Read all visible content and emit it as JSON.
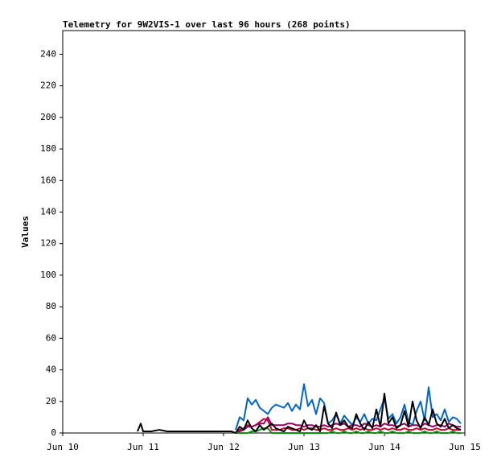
{
  "chart_data": {
    "type": "line",
    "title": "Telemetry for 9W2VIS-1 over last 96 hours (268 points)",
    "ylabel": "Values",
    "xlim": [
      10,
      15
    ],
    "xticks": [
      {
        "value": 10,
        "label": "Jun 10"
      },
      {
        "value": 11,
        "label": "Jun 11"
      },
      {
        "value": 12,
        "label": "Jun 12"
      },
      {
        "value": 13,
        "label": "Jun 13"
      },
      {
        "value": 14,
        "label": "Jun 14"
      },
      {
        "value": 15,
        "label": "Jun 15"
      }
    ],
    "ylim": [
      0,
      255
    ],
    "yticks": [
      0,
      20,
      40,
      60,
      80,
      100,
      120,
      140,
      160,
      180,
      200,
      220,
      240
    ],
    "x": [
      10.93,
      10.97,
      11.0,
      11.05,
      11.1,
      11.2,
      11.3,
      11.4,
      11.5,
      11.6,
      11.7,
      11.8,
      11.9,
      12.0,
      12.1,
      12.15,
      12.2,
      12.25,
      12.3,
      12.35,
      12.4,
      12.45,
      12.5,
      12.55,
      12.6,
      12.65,
      12.7,
      12.75,
      12.8,
      12.85,
      12.9,
      12.95,
      13.0,
      13.05,
      13.1,
      13.15,
      13.2,
      13.25,
      13.3,
      13.35,
      13.4,
      13.45,
      13.5,
      13.55,
      13.6,
      13.65,
      13.7,
      13.75,
      13.8,
      13.85,
      13.9,
      13.95,
      14.0,
      14.05,
      14.1,
      14.15,
      14.2,
      14.25,
      14.3,
      14.35,
      14.4,
      14.45,
      14.5,
      14.55,
      14.6,
      14.65,
      14.7,
      14.75,
      14.8,
      14.85,
      14.9,
      14.95
    ],
    "series": [
      {
        "color": "#0066cc",
        "values": [
          null,
          null,
          null,
          null,
          null,
          null,
          null,
          null,
          null,
          null,
          null,
          null,
          null,
          null,
          null,
          2,
          10,
          8,
          22,
          18,
          21,
          16,
          14,
          12,
          16,
          18,
          17,
          16,
          19,
          14,
          18,
          15,
          31,
          17,
          21,
          12,
          22,
          19,
          6,
          8,
          12,
          6,
          11,
          8,
          5,
          10,
          7,
          12,
          6,
          9,
          8,
          15,
          22,
          9,
          12,
          6,
          10,
          18,
          7,
          5,
          14,
          20,
          8,
          29,
          10,
          12,
          8,
          15,
          7,
          10,
          9,
          6
        ]
      },
      {
        "color": "#cc0033",
        "values": [
          null,
          null,
          null,
          null,
          null,
          null,
          null,
          null,
          null,
          null,
          null,
          null,
          null,
          null,
          null,
          0,
          2,
          3,
          5,
          4,
          5,
          7,
          9,
          8,
          2,
          2,
          2,
          3,
          3,
          2,
          2,
          3,
          2,
          3,
          3,
          2,
          2,
          3,
          2,
          2,
          3,
          2,
          2,
          3,
          2,
          3,
          2,
          3,
          2,
          2,
          3,
          2,
          3,
          2,
          3,
          2,
          2,
          3,
          2,
          2,
          3,
          2,
          3,
          2,
          2,
          3,
          2,
          2,
          3,
          2,
          2,
          2
        ]
      },
      {
        "color": "#990066",
        "values": [
          null,
          null,
          null,
          null,
          null,
          null,
          null,
          null,
          null,
          null,
          null,
          null,
          null,
          null,
          null,
          0,
          1,
          2,
          4,
          4,
          5,
          6,
          6,
          10,
          5,
          5,
          5,
          5,
          6,
          6,
          5,
          5,
          4,
          5,
          5,
          4,
          4,
          5,
          4,
          5,
          6,
          5,
          6,
          4,
          5,
          5,
          4,
          6,
          5,
          4,
          5,
          4,
          6,
          5,
          5,
          4,
          5,
          6,
          4,
          5,
          5,
          4,
          6,
          5,
          4,
          5,
          5,
          4,
          6,
          5,
          4,
          4
        ]
      },
      {
        "color": "#009900",
        "values": [
          null,
          null,
          null,
          null,
          null,
          null,
          null,
          null,
          null,
          null,
          null,
          null,
          null,
          null,
          null,
          0,
          0,
          0,
          0,
          1,
          1,
          2,
          3,
          3,
          0,
          0,
          0,
          0,
          0,
          0,
          0,
          0,
          0,
          0,
          0,
          0,
          0,
          0,
          0,
          1,
          0,
          0,
          1,
          0,
          0,
          1,
          0,
          0,
          1,
          0,
          0,
          1,
          0,
          0,
          1,
          0,
          0,
          0,
          1,
          0,
          0,
          0,
          1,
          0,
          0,
          1,
          0,
          0,
          0,
          1,
          0,
          0
        ]
      },
      {
        "color": "#000000",
        "values": [
          1,
          6,
          1,
          1,
          1,
          2,
          1,
          1,
          1,
          1,
          1,
          1,
          1,
          1,
          1,
          0,
          4,
          2,
          8,
          3,
          1,
          5,
          2,
          4,
          6,
          3,
          2,
          1,
          4,
          3,
          2,
          1,
          8,
          3,
          2,
          5,
          1,
          17,
          6,
          3,
          13,
          5,
          8,
          4,
          3,
          12,
          6,
          2,
          7,
          3,
          15,
          4,
          25,
          6,
          10,
          3,
          5,
          14,
          4,
          20,
          8,
          3,
          10,
          5,
          15,
          6,
          4,
          9,
          3,
          5,
          3,
          2
        ]
      }
    ]
  }
}
